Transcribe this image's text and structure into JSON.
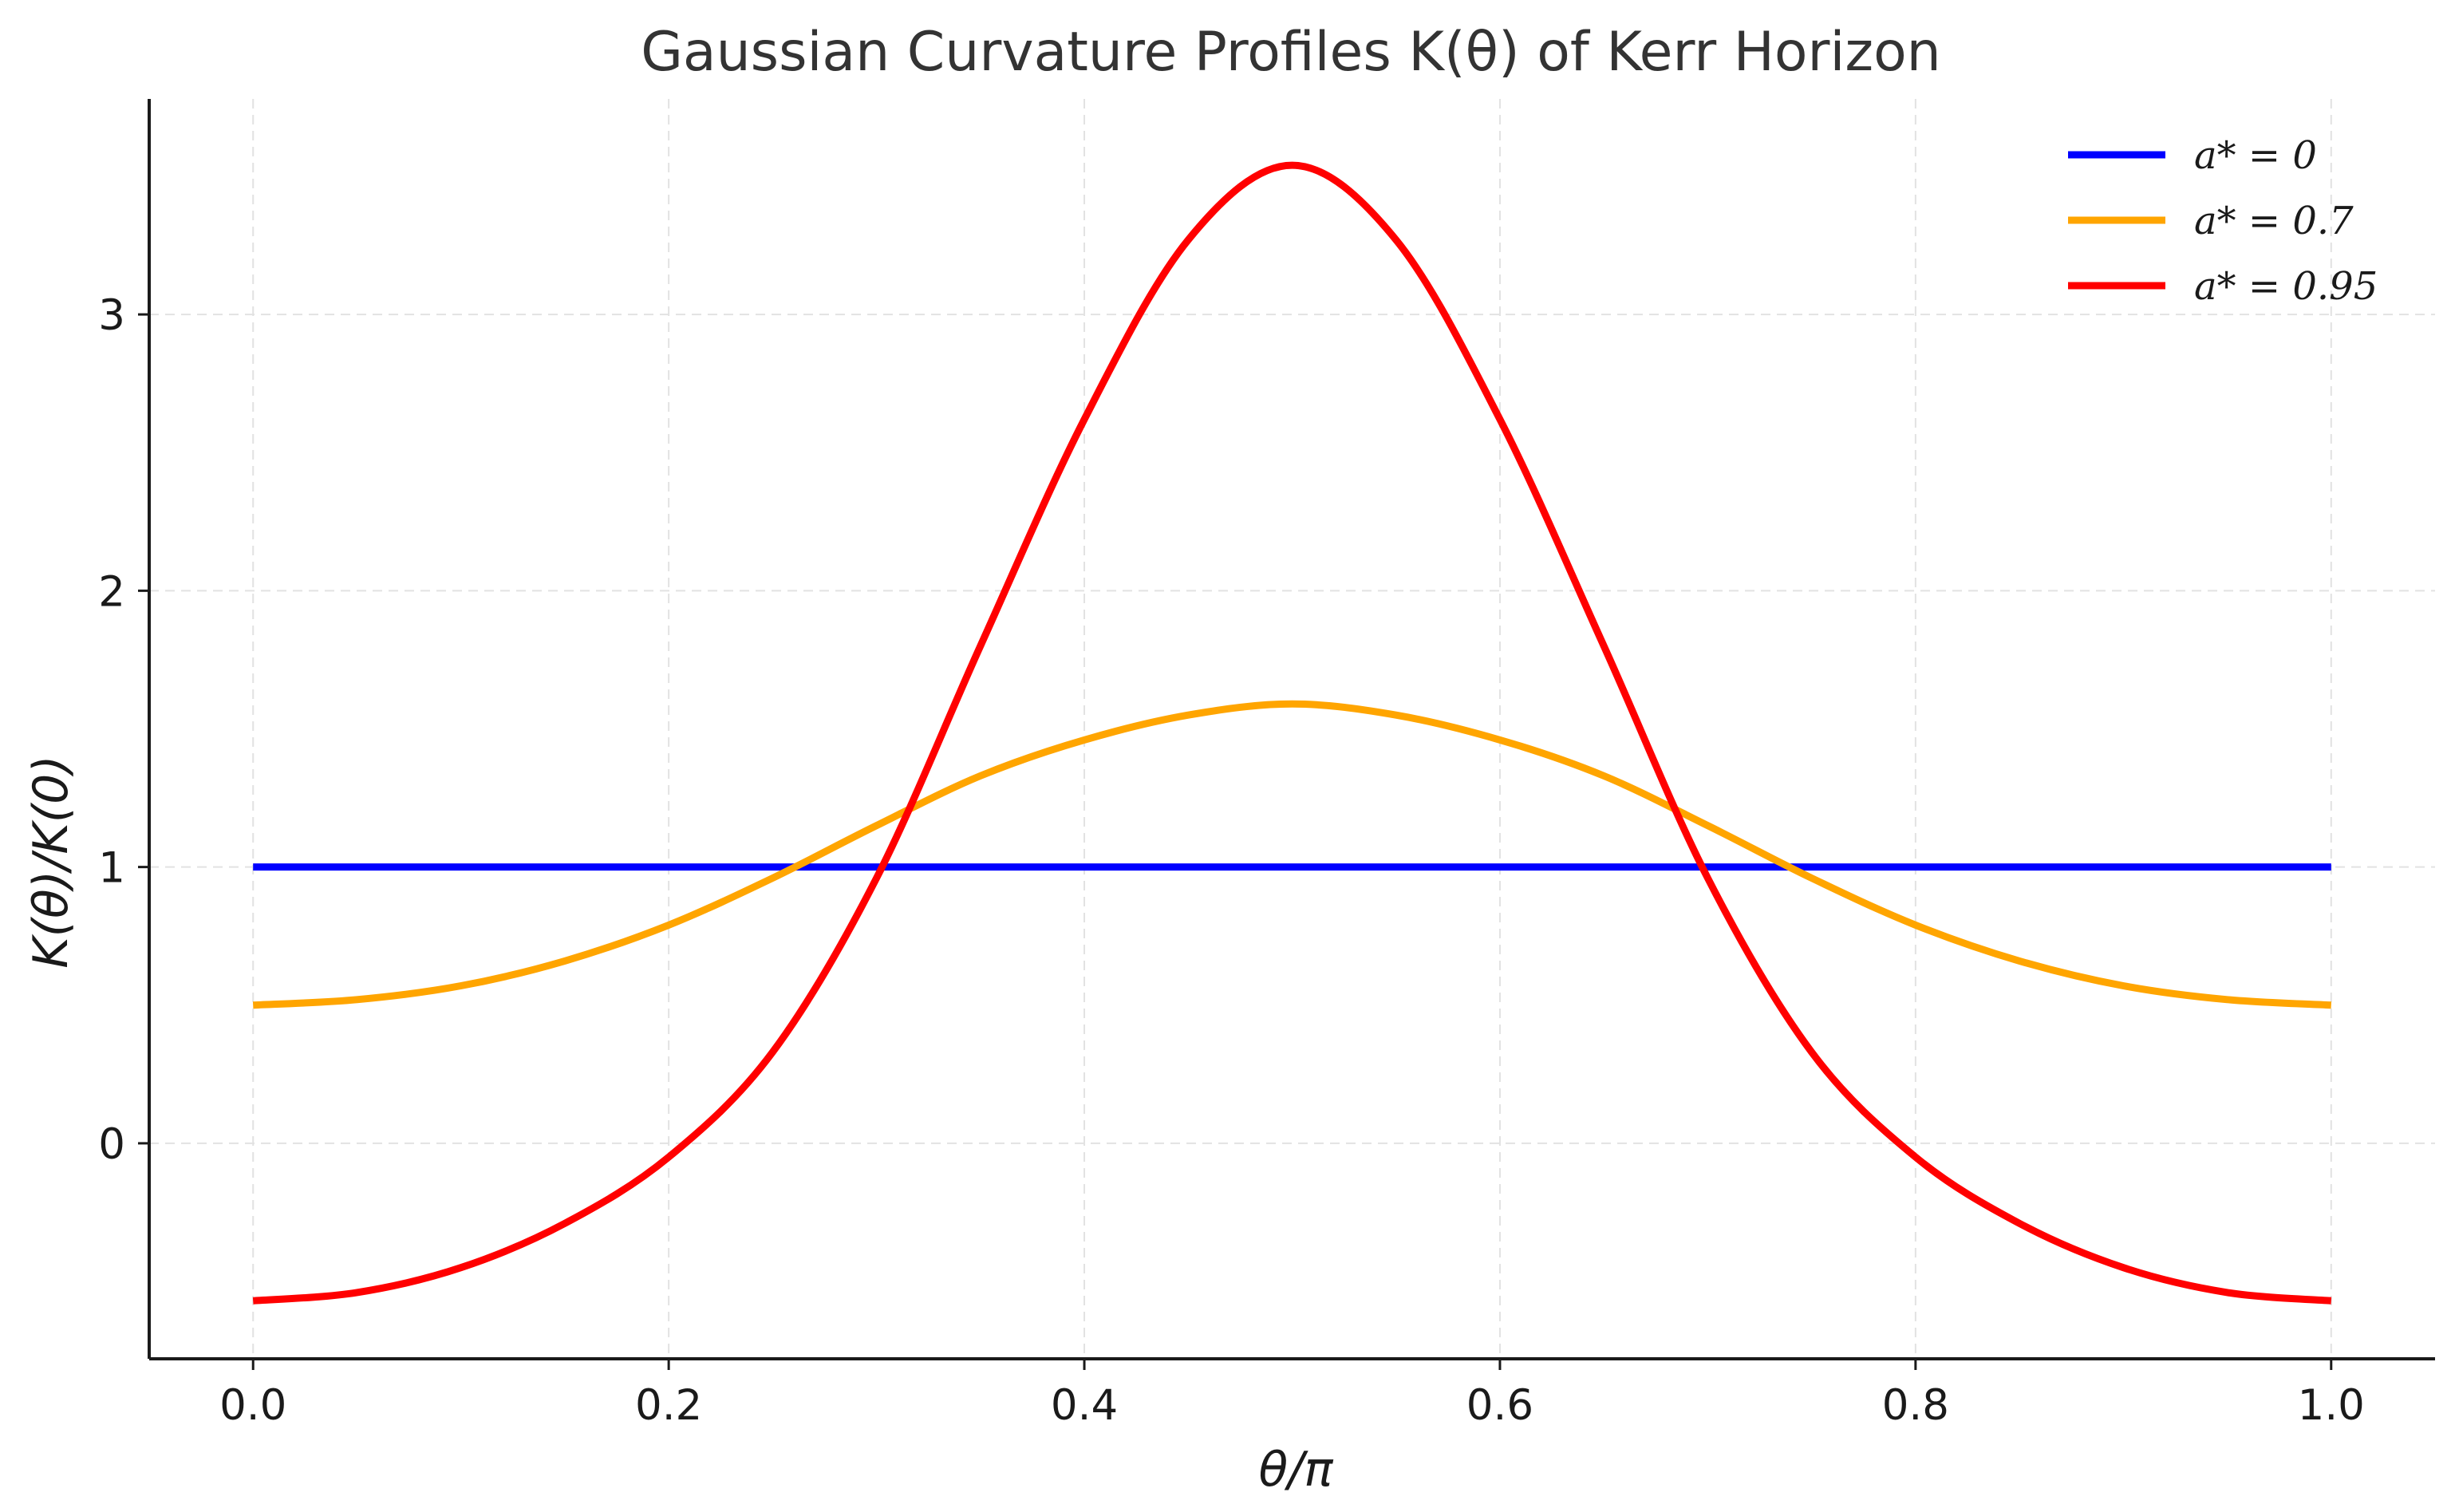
{
  "chart_data": {
    "type": "line",
    "title": "Gaussian Curvature Profiles K(θ) of Kerr Horizon",
    "xlabel": "θ/π",
    "ylabel": "K(θ)/K(0)",
    "xlim": [
      -0.05,
      1.05
    ],
    "ylim": [
      -0.78,
      3.78
    ],
    "grid": true,
    "legend_position": "top-right",
    "xticks": [
      0.0,
      0.2,
      0.4,
      0.6,
      0.8,
      1.0
    ],
    "xtick_labels": [
      "0.0",
      "0.2",
      "0.4",
      "0.6",
      "0.8",
      "1.0"
    ],
    "yticks": [
      0,
      1,
      2,
      3
    ],
    "ytick_labels": [
      "0",
      "1",
      "2",
      "3"
    ],
    "x": [
      0.0,
      0.05,
      0.1,
      0.15,
      0.2,
      0.25,
      0.3,
      0.35,
      0.4,
      0.45,
      0.5,
      0.55,
      0.6,
      0.65,
      0.7,
      0.75,
      0.8,
      0.85,
      0.9,
      0.95,
      1.0
    ],
    "series": [
      {
        "name": "a* = 0",
        "color": "#0000ff",
        "values": [
          1,
          1,
          1,
          1,
          1,
          1,
          1,
          1,
          1,
          1,
          1,
          1,
          1,
          1,
          1,
          1,
          1,
          1,
          1,
          1,
          1
        ]
      },
      {
        "name": "a* = 0.7",
        "color": "#ffa500",
        "values": [
          0.5,
          0.52,
          0.57,
          0.66,
          0.79,
          0.96,
          1.15,
          1.33,
          1.46,
          1.55,
          1.59,
          1.55,
          1.46,
          1.33,
          1.15,
          0.96,
          0.79,
          0.66,
          0.57,
          0.52,
          0.5
        ]
      },
      {
        "name": "a* = 0.95",
        "color": "#ff0000",
        "values": [
          -0.57,
          -0.54,
          -0.45,
          -0.29,
          -0.05,
          0.33,
          0.96,
          1.8,
          2.62,
          3.27,
          3.54,
          3.27,
          2.62,
          1.8,
          0.96,
          0.33,
          -0.05,
          -0.29,
          -0.45,
          -0.54,
          -0.57
        ]
      }
    ]
  }
}
